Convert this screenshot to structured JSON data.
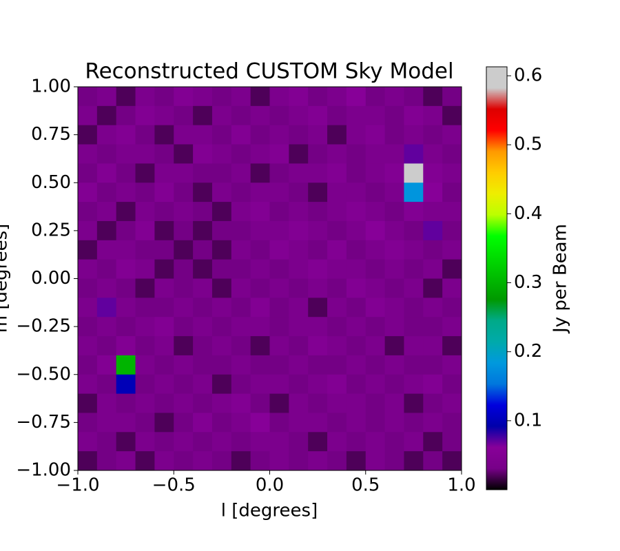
{
  "chart_data": {
    "type": "heatmap",
    "title": "Reconstructed CUSTOM Sky Model",
    "xlabel": "l [degrees]",
    "ylabel": "m [degrees]",
    "colorbar_label": "Jy per Beam",
    "colormap": "nipy_spectral",
    "xlim": [
      -1,
      1
    ],
    "ylim": [
      -1,
      1
    ],
    "clim": [
      0,
      0.613
    ],
    "xticks": [
      {
        "value": -1,
        "label": "−1.0"
      },
      {
        "value": -0.5,
        "label": "−0.5"
      },
      {
        "value": 0,
        "label": "0.0"
      },
      0.5,
      {
        "value": 1,
        "label": "1.0"
      }
    ],
    "yticks": [
      {
        "value": -1,
        "label": "−1.00"
      },
      {
        "value": -0.75,
        "label": "−0.75"
      },
      {
        "value": -0.5,
        "label": "−0.50"
      },
      {
        "value": -0.25,
        "label": "−0.25"
      },
      {
        "value": 0,
        "label": "0.00"
      },
      0.25,
      {
        "value": 0.5,
        "label": "0.50"
      },
      0.75,
      {
        "value": 1,
        "label": "1.00"
      }
    ],
    "cticks": [
      0.1,
      0.2,
      0.3,
      0.4,
      0.5,
      0.6
    ],
    "z": [
      [
        0.03,
        0.04,
        0.02,
        0.04,
        0.03,
        0.05,
        0.04,
        0.03,
        0.04,
        0.02,
        0.04,
        0.05,
        0.03,
        0.04,
        0.06,
        0.03,
        0.04,
        0.03,
        0.02,
        0.03
      ],
      [
        0.04,
        0.02,
        0.03,
        0.05,
        0.04,
        0.03,
        0.02,
        0.04,
        0.03,
        0.04,
        0.03,
        0.04,
        0.05,
        0.03,
        0.04,
        0.04,
        0.03,
        0.05,
        0.04,
        0.02
      ],
      [
        0.02,
        0.04,
        0.05,
        0.03,
        0.02,
        0.04,
        0.04,
        0.03,
        0.05,
        0.03,
        0.04,
        0.03,
        0.04,
        0.02,
        0.04,
        0.05,
        0.03,
        0.04,
        0.03,
        0.04
      ],
      [
        0.04,
        0.03,
        0.04,
        0.04,
        0.03,
        0.02,
        0.05,
        0.04,
        0.03,
        0.04,
        0.05,
        0.02,
        0.03,
        0.04,
        0.03,
        0.04,
        0.04,
        0.07,
        0.04,
        0.03
      ],
      [
        0.03,
        0.05,
        0.03,
        0.02,
        0.04,
        0.04,
        0.03,
        0.03,
        0.04,
        0.02,
        0.03,
        0.04,
        0.04,
        0.05,
        0.03,
        0.04,
        0.05,
        0.6,
        0.05,
        0.04
      ],
      [
        0.05,
        0.03,
        0.04,
        0.03,
        0.05,
        0.03,
        0.02,
        0.04,
        0.03,
        0.04,
        0.04,
        0.03,
        0.02,
        0.04,
        0.04,
        0.03,
        0.04,
        0.18,
        0.06,
        0.03
      ],
      [
        0.03,
        0.04,
        0.02,
        0.04,
        0.03,
        0.04,
        0.03,
        0.02,
        0.04,
        0.05,
        0.03,
        0.04,
        0.03,
        0.04,
        0.05,
        0.04,
        0.03,
        0.05,
        0.04,
        0.04
      ],
      [
        0.04,
        0.02,
        0.03,
        0.05,
        0.02,
        0.03,
        0.02,
        0.03,
        0.03,
        0.04,
        0.04,
        0.05,
        0.04,
        0.03,
        0.04,
        0.06,
        0.04,
        0.03,
        0.07,
        0.03
      ],
      [
        0.02,
        0.04,
        0.04,
        0.03,
        0.03,
        0.02,
        0.03,
        0.02,
        0.04,
        0.03,
        0.05,
        0.04,
        0.03,
        0.05,
        0.03,
        0.04,
        0.05,
        0.04,
        0.03,
        0.04
      ],
      [
        0.04,
        0.03,
        0.05,
        0.04,
        0.02,
        0.03,
        0.02,
        0.03,
        0.03,
        0.04,
        0.03,
        0.04,
        0.05,
        0.04,
        0.04,
        0.03,
        0.04,
        0.03,
        0.04,
        0.02
      ],
      [
        0.03,
        0.04,
        0.03,
        0.02,
        0.04,
        0.03,
        0.04,
        0.02,
        0.04,
        0.03,
        0.04,
        0.03,
        0.04,
        0.03,
        0.05,
        0.04,
        0.03,
        0.04,
        0.02,
        0.04
      ],
      [
        0.04,
        0.07,
        0.04,
        0.03,
        0.03,
        0.04,
        0.03,
        0.04,
        0.03,
        0.05,
        0.03,
        0.04,
        0.02,
        0.04,
        0.03,
        0.05,
        0.04,
        0.03,
        0.04,
        0.03
      ],
      [
        0.03,
        0.04,
        0.03,
        0.04,
        0.05,
        0.03,
        0.04,
        0.03,
        0.04,
        0.04,
        0.03,
        0.04,
        0.04,
        0.03,
        0.04,
        0.03,
        0.04,
        0.03,
        0.03,
        0.04
      ],
      [
        0.04,
        0.03,
        0.05,
        0.03,
        0.04,
        0.02,
        0.03,
        0.04,
        0.03,
        0.02,
        0.04,
        0.03,
        0.05,
        0.04,
        0.03,
        0.04,
        0.02,
        0.04,
        0.04,
        0.02
      ],
      [
        0.03,
        0.05,
        0.3,
        0.04,
        0.03,
        0.04,
        0.03,
        0.03,
        0.04,
        0.03,
        0.03,
        0.04,
        0.03,
        0.03,
        0.04,
        0.03,
        0.04,
        0.03,
        0.03,
        0.04
      ],
      [
        0.04,
        0.03,
        0.1,
        0.03,
        0.04,
        0.03,
        0.04,
        0.02,
        0.03,
        0.04,
        0.04,
        0.03,
        0.04,
        0.05,
        0.03,
        0.04,
        0.03,
        0.04,
        0.05,
        0.03
      ],
      [
        0.02,
        0.04,
        0.03,
        0.04,
        0.03,
        0.04,
        0.03,
        0.04,
        0.05,
        0.03,
        0.02,
        0.04,
        0.03,
        0.04,
        0.04,
        0.03,
        0.04,
        0.02,
        0.03,
        0.04
      ],
      [
        0.03,
        0.04,
        0.04,
        0.03,
        0.02,
        0.03,
        0.05,
        0.03,
        0.04,
        0.06,
        0.03,
        0.04,
        0.04,
        0.03,
        0.04,
        0.03,
        0.04,
        0.03,
        0.04,
        0.03
      ],
      [
        0.04,
        0.03,
        0.02,
        0.04,
        0.03,
        0.04,
        0.03,
        0.04,
        0.03,
        0.04,
        0.04,
        0.03,
        0.02,
        0.04,
        0.03,
        0.04,
        0.03,
        0.04,
        0.02,
        0.03
      ],
      [
        0.02,
        0.03,
        0.04,
        0.02,
        0.04,
        0.03,
        0.04,
        0.03,
        0.02,
        0.03,
        0.04,
        0.03,
        0.04,
        0.03,
        0.02,
        0.04,
        0.03,
        0.02,
        0.03,
        0.02
      ]
    ]
  }
}
